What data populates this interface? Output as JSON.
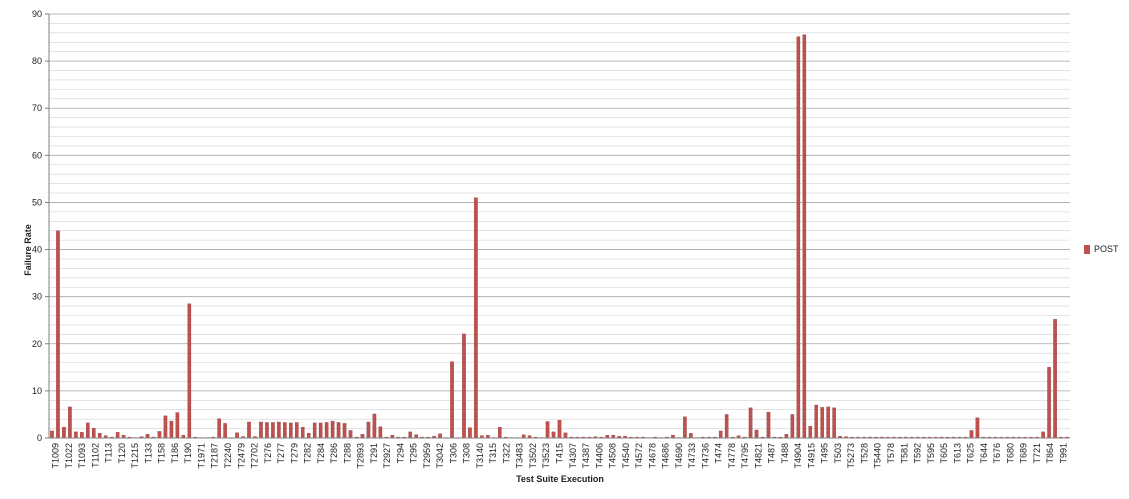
{
  "chart_data": {
    "type": "bar",
    "xlabel": "Test Suite Execution",
    "ylabel": "Failure Rate",
    "ylim": [
      0,
      90
    ],
    "major_ticks": [
      0,
      10,
      20,
      30,
      40,
      50,
      60,
      70,
      80,
      90
    ],
    "grid": true,
    "legend_position": "right",
    "colors": {
      "bar": "#c0504d",
      "bar_edge": "#8c3836",
      "grid": "#d0d0d0",
      "axis": "#7f7f7f"
    },
    "x_tick_labels": [
      "T1009",
      "T1022",
      "T1093",
      "T1102",
      "T113",
      "T120",
      "T1215",
      "T133",
      "T158",
      "T186",
      "T190",
      "T1971",
      "T2187",
      "T2240",
      "T2479",
      "T2702",
      "T276",
      "T277",
      "T279",
      "T282",
      "T284",
      "T286",
      "T288",
      "T2893",
      "T291",
      "T2927",
      "T294",
      "T295",
      "T2959",
      "T3042",
      "T306",
      "T308",
      "T3140",
      "T315",
      "T322",
      "T3483",
      "T3502",
      "T3523",
      "T415",
      "T4307",
      "T4387",
      "T4406",
      "T4508",
      "T4540",
      "T4572",
      "T4678",
      "T4686",
      "T4690",
      "T4733",
      "T4736",
      "T474",
      "T4778",
      "T4795",
      "T4821",
      "T487",
      "T488",
      "T4904",
      "T4915",
      "T495",
      "T503",
      "T5273",
      "T528",
      "T5440",
      "T578",
      "T581",
      "T592",
      "T595",
      "T605",
      "T613",
      "T625",
      "T644",
      "T676",
      "T680",
      "T689",
      "T721",
      "T864",
      "T991"
    ],
    "series": [
      {
        "name": "POST",
        "values": [
          1.5,
          44,
          2.3,
          6.6,
          1.3,
          1.2,
          3.2,
          2.1,
          1,
          0.5,
          0.2,
          1.2,
          0.6,
          0.2,
          0.1,
          0.3,
          0.8,
          0.2,
          1.4,
          4.7,
          3.6,
          5.4,
          0.6,
          28.5,
          0.2,
          0.1,
          0.1,
          0.2,
          4.1,
          3.1,
          0.1,
          1.1,
          0.3,
          3.4,
          0.3,
          3.4,
          3.3,
          3.3,
          3.4,
          3.3,
          3.2,
          3.3,
          2.3,
          1,
          3.2,
          3.2,
          3.3,
          3.6,
          3.3,
          3.1,
          1.6,
          0.2,
          0.8,
          3.4,
          5.1,
          2.4,
          0.2,
          0.6,
          0.2,
          0.2,
          1.3,
          0.7,
          0.2,
          0.2,
          0.4,
          0.9,
          0.1,
          16.2,
          0.1,
          22.1,
          2.2,
          51,
          0.5,
          0.6,
          0.1,
          2.3,
          0.2,
          0.1,
          0.1,
          0.7,
          0.5,
          0.2,
          0.1,
          3.5,
          1.3,
          3.8,
          1.1,
          0.2,
          0.2,
          0.2,
          0.2,
          0.3,
          0.2,
          0.6,
          0.6,
          0.4,
          0.4,
          0.2,
          0.2,
          0.2,
          0.1,
          0.2,
          0.1,
          0.2,
          0.6,
          0.1,
          4.5,
          1,
          0.1,
          0.2,
          0.2,
          0.2,
          1.5,
          5,
          0.2,
          0.5,
          0.2,
          6.4,
          1.7,
          0.2,
          5.5,
          0.2,
          0.2,
          0.8,
          5,
          85.2,
          85.6,
          2.5,
          7,
          6.5,
          6.6,
          6.4,
          0.4,
          0.3,
          0.2,
          0.2,
          0.2,
          0.2,
          0.2,
          0.2,
          0.2,
          0.2,
          0.2,
          0.2,
          0.2,
          0.2,
          0.2,
          0.2,
          0.2,
          0.2,
          0.2,
          0.2,
          0.2,
          0.2,
          1.6,
          4.3,
          0.2,
          0.2,
          0.2,
          0.2,
          0.2,
          0.2,
          0.2,
          0.2,
          0.2,
          0.2,
          1.3,
          15,
          25.2,
          0.2,
          0.2
        ]
      }
    ]
  }
}
